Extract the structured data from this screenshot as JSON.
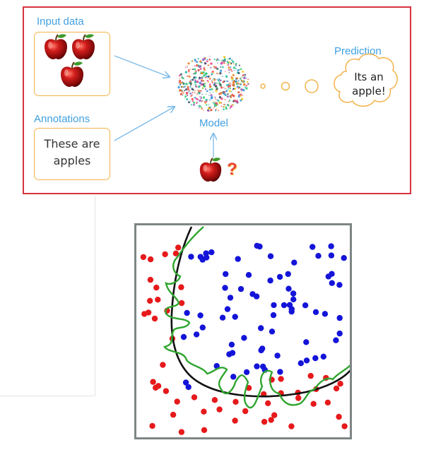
{
  "diagram": {
    "input_label": "Input data",
    "annotations_label": "Annotations",
    "annotation_text_line1": "These are",
    "annotation_text_line2": "apples",
    "model_label": "Model",
    "prediction_label": "Prediction",
    "prediction_line1": "Its an",
    "prediction_line2": "apple!",
    "question_mark": "?",
    "colors": {
      "frame": "#d6333e",
      "label": "#3fa0e0",
      "box": "#f3b34a",
      "arrow": "#7bbbe8"
    },
    "icons": [
      "apple-icon",
      "brain-network-icon",
      "thought-cloud-icon",
      "question-mark-icon"
    ]
  },
  "plot": {
    "colors": {
      "red_class": "#e6191b",
      "blue_class": "#1414d9",
      "smooth_boundary": "#111111",
      "overfit_boundary": "#2ea52e",
      "frame": "#7e8585"
    }
  }
}
